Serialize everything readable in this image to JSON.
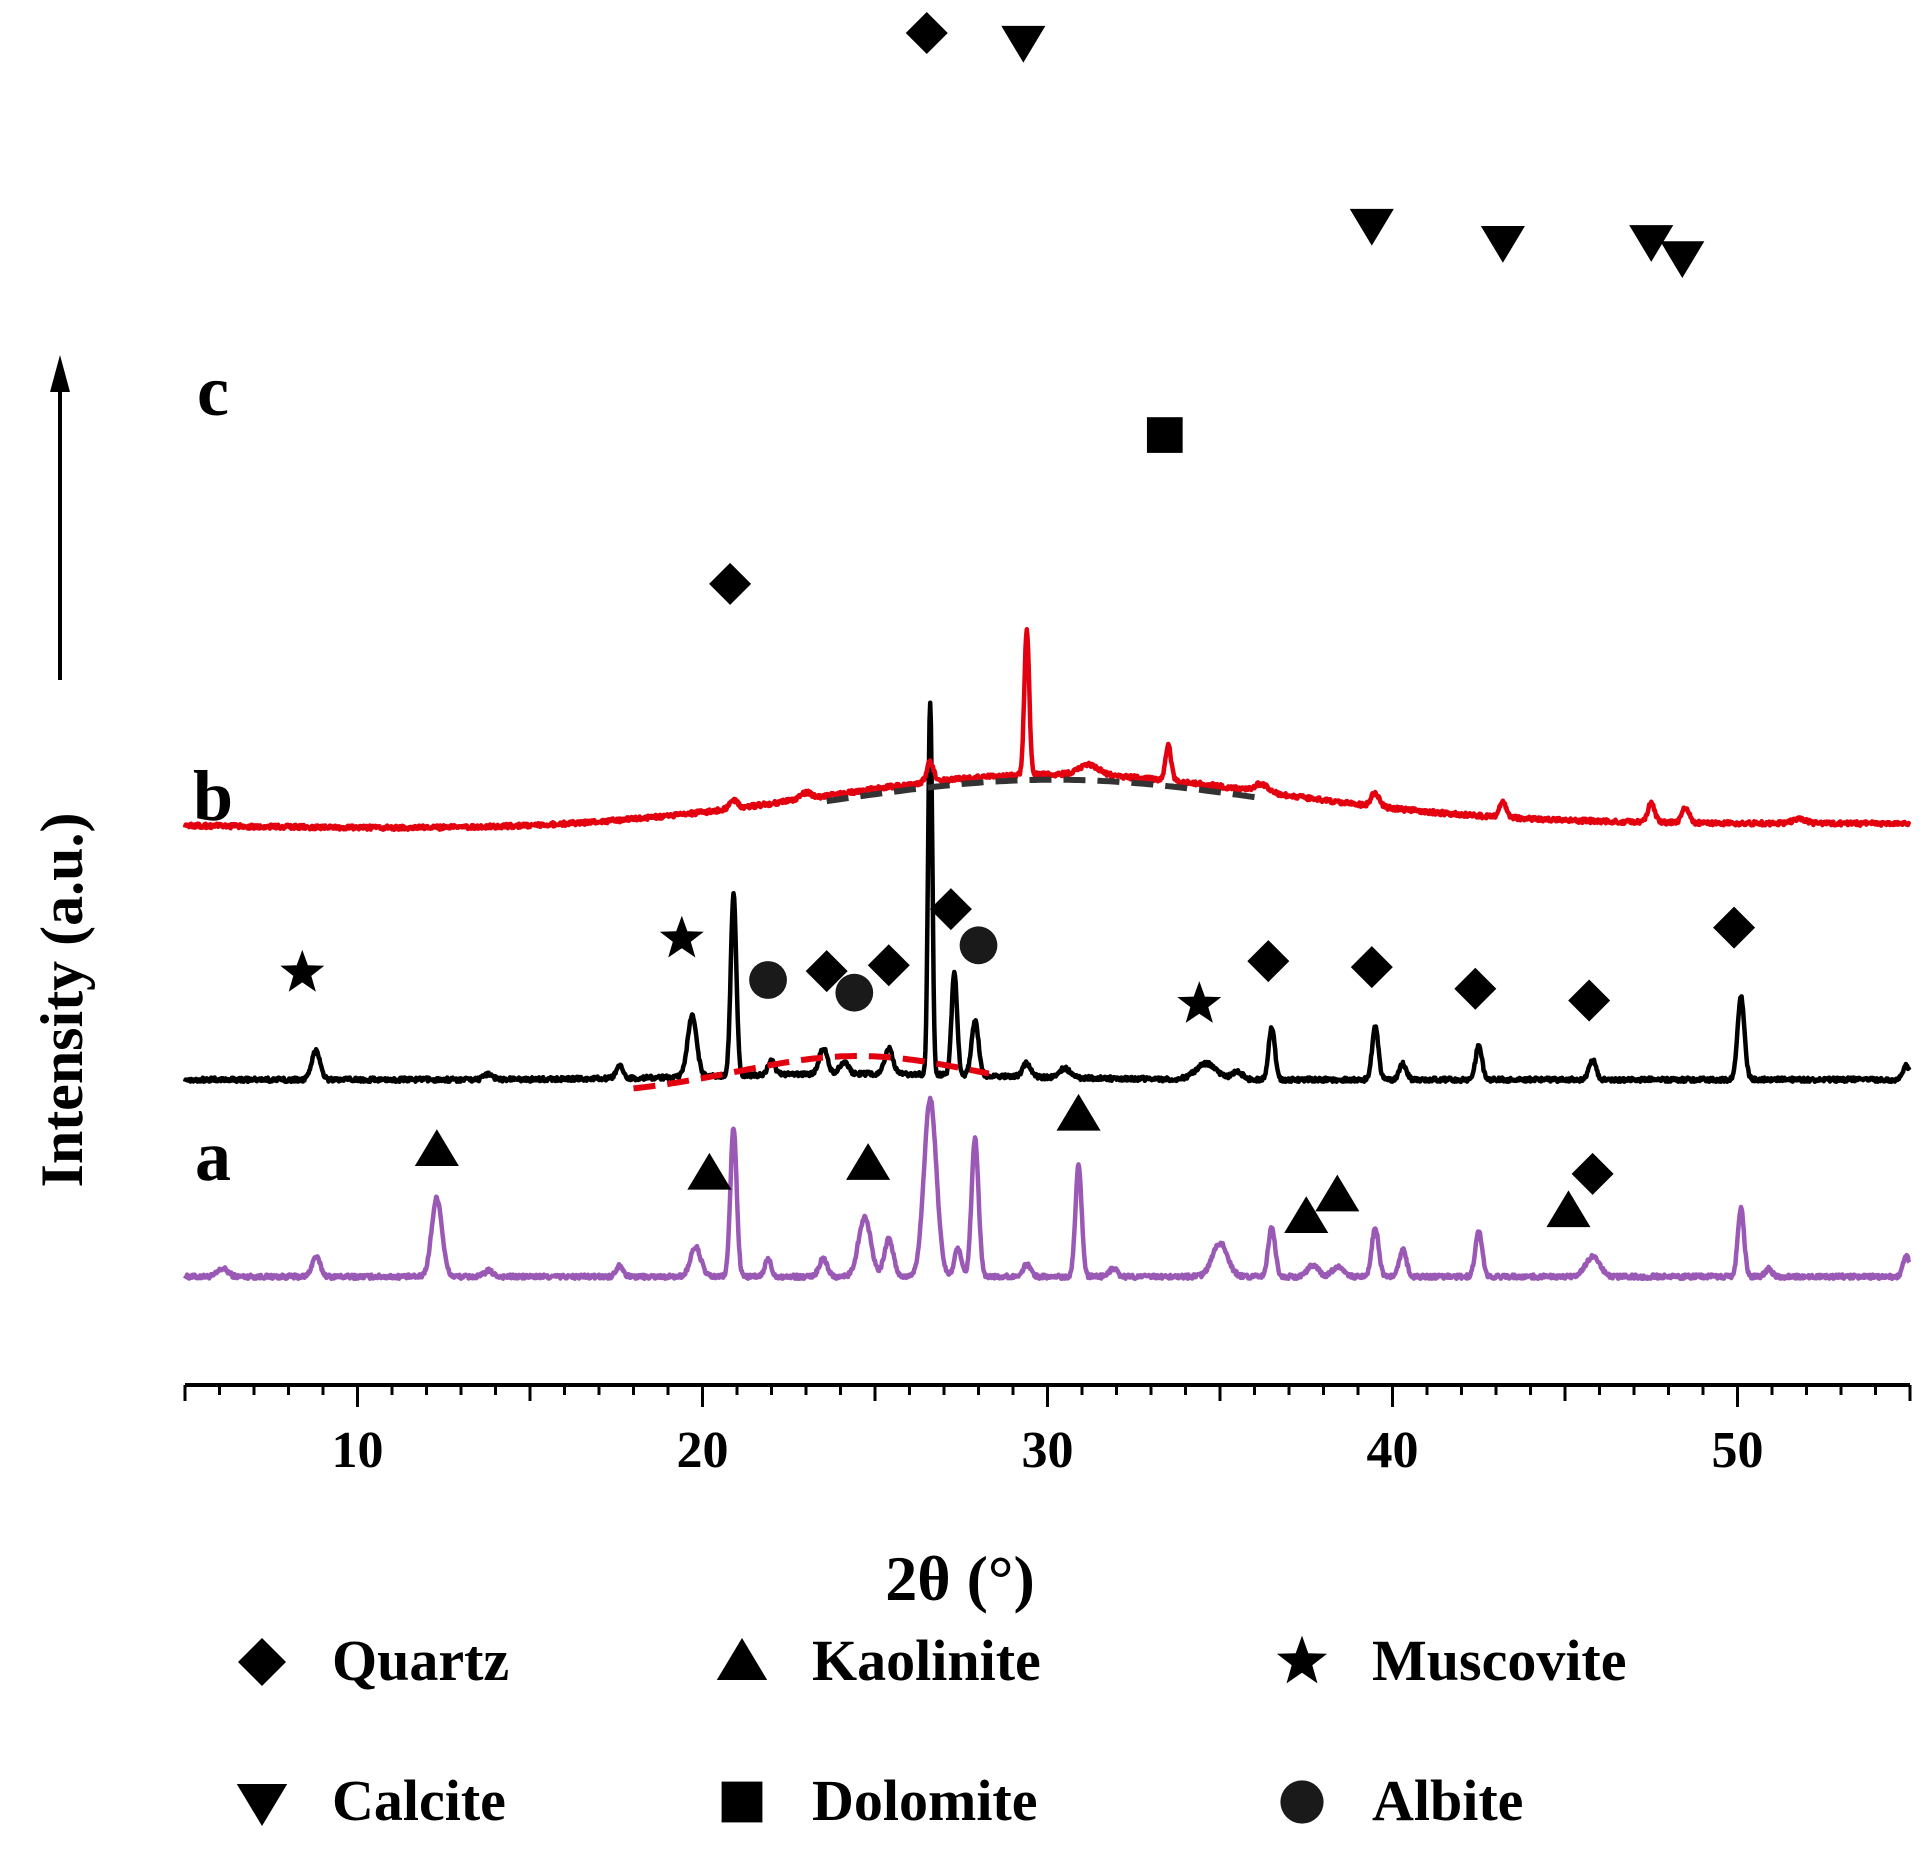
{
  "chart_data": {
    "type": "line",
    "title": "",
    "xlabel": "2θ (°)",
    "ylabel": "Intensity (a.u.)",
    "xlim": [
      5,
      55
    ],
    "x_ticks": [
      10,
      20,
      30,
      40,
      50
    ],
    "x_tick_labels": [
      "10",
      "20",
      "30",
      "40",
      "50"
    ],
    "y_ticks": "none (arbitrary units, stacked offset curves)",
    "grid": false,
    "legend_placement": "bottom",
    "colors": {
      "a": "#9b59b6",
      "b": "#000000",
      "c": "#e3000f",
      "hump_b": "#e3000f",
      "hump_c": "#333333"
    },
    "series": [
      {
        "name": "a",
        "color": "#9b59b6",
        "offset": 0,
        "baseline": 22,
        "peaks": [
          [
            6.1,
            4,
            0.15
          ],
          [
            8.8,
            10,
            0.12
          ],
          [
            12.3,
            40,
            0.15
          ],
          [
            13.8,
            3,
            0.12
          ],
          [
            17.6,
            6,
            0.1
          ],
          [
            19.8,
            15,
            0.15
          ],
          [
            20.9,
            76,
            0.09
          ],
          [
            21.9,
            9,
            0.09
          ],
          [
            23.5,
            9,
            0.12
          ],
          [
            24.7,
            30,
            0.18
          ],
          [
            25.4,
            19,
            0.13
          ],
          [
            26.6,
            90,
            0.18
          ],
          [
            27.4,
            14,
            0.1
          ],
          [
            27.9,
            70,
            0.1
          ],
          [
            29.4,
            6,
            0.12
          ],
          [
            30.9,
            57,
            0.09
          ],
          [
            31.9,
            4,
            0.12
          ],
          [
            35.0,
            17,
            0.22
          ],
          [
            36.5,
            25,
            0.1
          ],
          [
            37.7,
            6,
            0.15
          ],
          [
            38.4,
            5,
            0.15
          ],
          [
            39.5,
            25,
            0.1
          ],
          [
            40.3,
            14,
            0.1
          ],
          [
            42.5,
            23,
            0.1
          ],
          [
            45.8,
            10,
            0.2
          ],
          [
            50.1,
            35,
            0.09
          ],
          [
            50.9,
            4,
            0.1
          ],
          [
            54.9,
            10,
            0.1
          ]
        ]
      },
      {
        "name": "b",
        "color": "#000000",
        "offset": 100,
        "baseline": 22,
        "hump": {
          "center": 24.5,
          "width": 4,
          "height": 3
        },
        "peaks": [
          [
            8.8,
            15,
            0.12
          ],
          [
            13.8,
            3,
            0.12
          ],
          [
            17.6,
            6,
            0.1
          ],
          [
            19.7,
            31,
            0.13
          ],
          [
            20.9,
            93,
            0.08
          ],
          [
            22.0,
            7,
            0.1
          ],
          [
            23.5,
            13,
            0.12
          ],
          [
            24.1,
            6,
            0.12
          ],
          [
            25.4,
            13,
            0.12
          ],
          [
            26.6,
            189,
            0.06
          ],
          [
            27.3,
            52,
            0.08
          ],
          [
            27.9,
            28,
            0.1
          ],
          [
            29.4,
            7,
            0.12
          ],
          [
            30.5,
            5,
            0.15
          ],
          [
            34.6,
            8,
            0.3
          ],
          [
            35.5,
            4,
            0.15
          ],
          [
            36.5,
            27,
            0.09
          ],
          [
            39.5,
            27,
            0.09
          ],
          [
            40.3,
            8,
            0.1
          ],
          [
            42.5,
            18,
            0.09
          ],
          [
            45.8,
            10,
            0.1
          ],
          [
            50.1,
            42,
            0.1
          ],
          [
            54.9,
            7,
            0.1
          ]
        ]
      },
      {
        "name": "c",
        "color": "#e3000f",
        "offset": 230,
        "baseline": 22,
        "hump": {
          "center": 30.2,
          "width": 6.4,
          "height": 25
        },
        "peaks": [
          [
            20.9,
            4,
            0.12
          ],
          [
            23.0,
            3,
            0.15
          ],
          [
            26.6,
            10,
            0.1
          ],
          [
            29.4,
            74,
            0.07
          ],
          [
            31.2,
            5,
            0.3
          ],
          [
            33.5,
            18,
            0.08
          ],
          [
            36.2,
            4,
            0.2
          ],
          [
            39.5,
            7,
            0.12
          ],
          [
            43.2,
            8,
            0.1
          ],
          [
            47.5,
            10,
            0.1
          ],
          [
            48.5,
            8,
            0.1
          ],
          [
            51.8,
            2,
            0.2
          ]
        ]
      }
    ],
    "amorphous_humps": [
      {
        "series": "b",
        "x_range": [
          18,
          28.4
        ],
        "color": "#e3000f",
        "style": "dashed"
      },
      {
        "series": "c",
        "x_range": [
          23.6,
          36.2
        ],
        "color": "#333333",
        "style": "dashed"
      }
    ],
    "curve_labels": [
      "c",
      "b",
      "a"
    ],
    "phase_markers": [
      {
        "phase": "Quartz",
        "symbol": "diamond",
        "series": "c",
        "positions": [
          [
            20.8,
            103
          ],
          [
            26.5,
            370
          ]
        ]
      },
      {
        "phase": "Calcite",
        "symbol": "triangle-down",
        "series": "c",
        "positions": [
          [
            29.3,
            362
          ],
          [
            39.4,
            285
          ],
          [
            43.2,
            282
          ],
          [
            47.5,
            285
          ],
          [
            48.4,
            277
          ]
        ]
      },
      {
        "phase": "Dolomite",
        "symbol": "square",
        "series": "c",
        "positions": [
          [
            33.4,
            165
          ]
        ]
      },
      {
        "phase": "Muscovite",
        "symbol": "star",
        "series": "b",
        "positions": [
          [
            8.4,
            44
          ],
          [
            19.4,
            60
          ],
          [
            34.4,
            28
          ]
        ]
      },
      {
        "phase": "Albite",
        "symbol": "circle",
        "series": "b",
        "positions": [
          [
            21.9,
            38
          ],
          [
            24.4,
            31
          ],
          [
            28.0,
            56
          ]
        ]
      },
      {
        "phase": "Quartz",
        "symbol": "diamond",
        "series": "b",
        "positions": [
          [
            23.6,
            42
          ],
          [
            25.4,
            45
          ],
          [
            27.2,
            74
          ],
          [
            36.4,
            50
          ],
          [
            39.4,
            47
          ],
          [
            42.4,
            36
          ],
          [
            45.7,
            30
          ],
          [
            49.9,
            67
          ]
        ]
      },
      {
        "phase": "Kaolinite",
        "symbol": "triangle-up",
        "series": "a",
        "positions": [
          [
            12.3,
            54
          ],
          [
            20.2,
            42
          ],
          [
            24.8,
            47
          ],
          [
            30.9,
            72
          ],
          [
            37.5,
            20
          ],
          [
            38.4,
            31
          ],
          [
            45.1,
            23
          ]
        ]
      },
      {
        "phase": "Quartz",
        "symbol": "diamond",
        "series": "a",
        "positions": [
          [
            45.8,
            42
          ]
        ]
      }
    ],
    "legend": [
      {
        "symbol": "diamond",
        "label": "Quartz"
      },
      {
        "symbol": "triangle-up",
        "label": "Kaolinite"
      },
      {
        "symbol": "star",
        "label": "Muscovite"
      },
      {
        "symbol": "triangle-down",
        "label": "Calcite"
      },
      {
        "symbol": "square",
        "label": "Dolomite"
      },
      {
        "symbol": "circle",
        "label": "Albite"
      }
    ]
  }
}
